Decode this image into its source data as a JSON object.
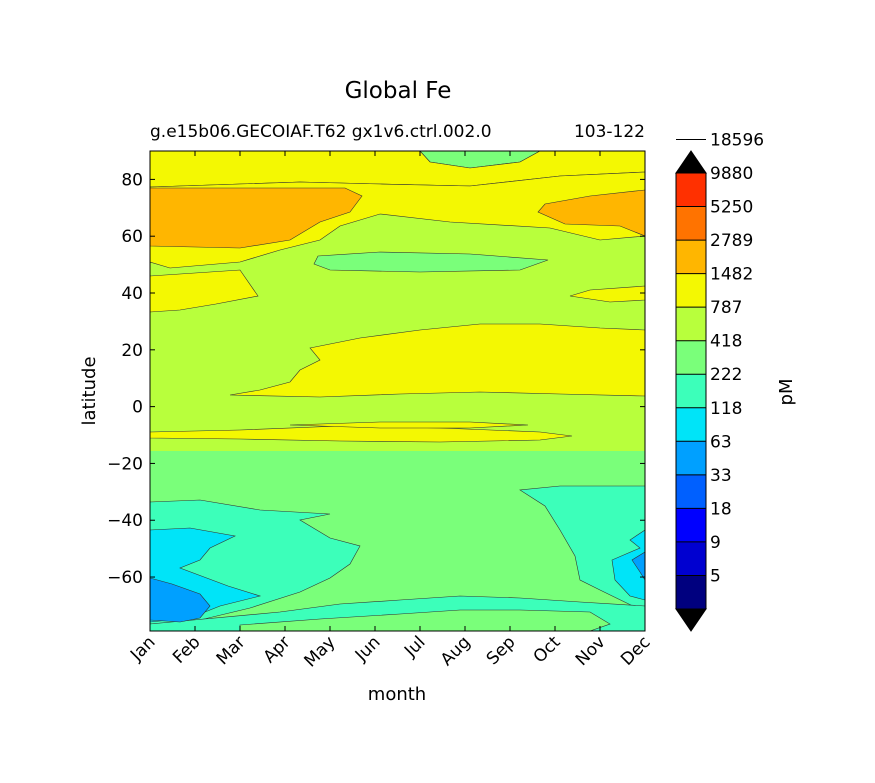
{
  "chart_data": {
    "type": "contourf",
    "title": "Global Fe",
    "subtitle_left": "g.e15b06.GECOIAF.T62 gx1v6.ctrl.002.0",
    "subtitle_right": "103-122",
    "xlabel": "month",
    "ylabel": "latitude",
    "x_tick_labels": [
      "Jan",
      "Feb",
      "Mar",
      "Apr",
      "May",
      "Jun",
      "Jul",
      "Aug",
      "Sep",
      "Oct",
      "Nov",
      "Dec"
    ],
    "y_ticks": [
      80,
      60,
      40,
      20,
      0,
      -20,
      -40,
      -60
    ],
    "y_tick_labels": [
      "80",
      "60",
      "40",
      "20",
      "0",
      "−20",
      "−40",
      "−60"
    ],
    "ylim": [
      -79,
      90
    ],
    "colorbar": {
      "label": "pM",
      "levels": [
        5,
        9,
        18,
        33,
        63,
        118,
        222,
        418,
        787,
        1482,
        2789,
        5250,
        9880,
        18596
      ],
      "level_labels": [
        "5",
        "9",
        "18",
        "33",
        "63",
        "118",
        "222",
        "418",
        "787",
        "1482",
        "2789",
        "5250",
        "9880",
        "18596"
      ],
      "colors": [
        "#00007f",
        "#0000d0",
        "#0000ff",
        "#0060ff",
        "#00a0ff",
        "#00e4f8",
        "#3cffba",
        "#7aff7a",
        "#b8ff3c",
        "#f4f802",
        "#ffb600",
        "#ff7300",
        "#ff3000",
        "#d40000",
        "#7f0000"
      ],
      "extend": "both"
    },
    "regions": [
      {
        "name": "tropical-band",
        "level_index": 9,
        "desc": "lat 3 to 28, May-Dec"
      },
      {
        "name": "subarctic-high-west",
        "level_index": 10,
        "desc": "lat 56 to 76, Jan-Mar"
      },
      {
        "name": "subarctic-high-east",
        "level_index": 10,
        "desc": "lat 56 to 74, Oct-Dec"
      },
      {
        "name": "southern-ocean-low",
        "level_index": 5,
        "desc": "lat -70 to -44, Jan-Feb and Nov-Dec"
      },
      {
        "name": "southern-ocean-lowest",
        "level_index": 4,
        "desc": "lat -77 to -62, Jan"
      }
    ]
  }
}
